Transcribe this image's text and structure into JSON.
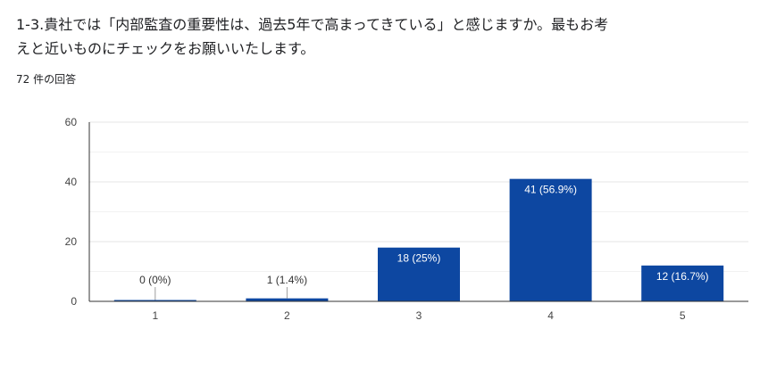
{
  "question": {
    "line1": "1-3.貴社では「内部監査の重要性は、過去5年で高まってきている」と感じますか。最もお考",
    "line2": "えと近いものにチェックをお願いいたします。"
  },
  "response_count": "72 件の回答",
  "colors": {
    "bar": "#0d47a1",
    "grid": "#e6e6e6",
    "axis": "#333333"
  },
  "chart_data": {
    "type": "bar",
    "categories": [
      "1",
      "2",
      "3",
      "4",
      "5"
    ],
    "values": [
      0,
      1,
      18,
      41,
      12
    ],
    "data_labels": [
      "0 (0%)",
      "1 (1.4%)",
      "18 (25%)",
      "41 (56.9%)",
      "12 (16.7%)"
    ],
    "ylim": [
      0,
      60
    ],
    "yticks": [
      0,
      20,
      40,
      60
    ],
    "grid": true
  }
}
